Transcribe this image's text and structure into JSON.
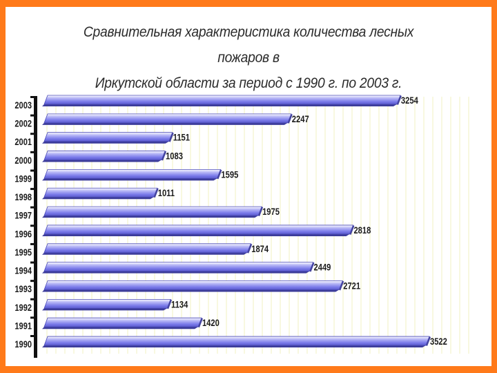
{
  "chart_data": {
    "type": "bar",
    "orientation": "horizontal",
    "title_line1": "Сравнительная характеристика количества лесных пожаров в",
    "title_line2": "Иркутской области за период с 1990 г. по 2003 г.",
    "categories": [
      "2003",
      "2002",
      "2001",
      "2000",
      "1999",
      "1998",
      "1997",
      "1996",
      "1995",
      "1994",
      "1993",
      "1992",
      "1991",
      "1990"
    ],
    "values": [
      3254,
      2247,
      1151,
      1083,
      1595,
      1011,
      1975,
      2818,
      1874,
      2449,
      2721,
      1134,
      1420,
      3522
    ],
    "xlim": [
      0,
      3600
    ],
    "grid": true,
    "bar_color": "#7b7bea",
    "bar_shadow_color": "#3c3c9a",
    "grid_color": "#f2f2c2"
  }
}
